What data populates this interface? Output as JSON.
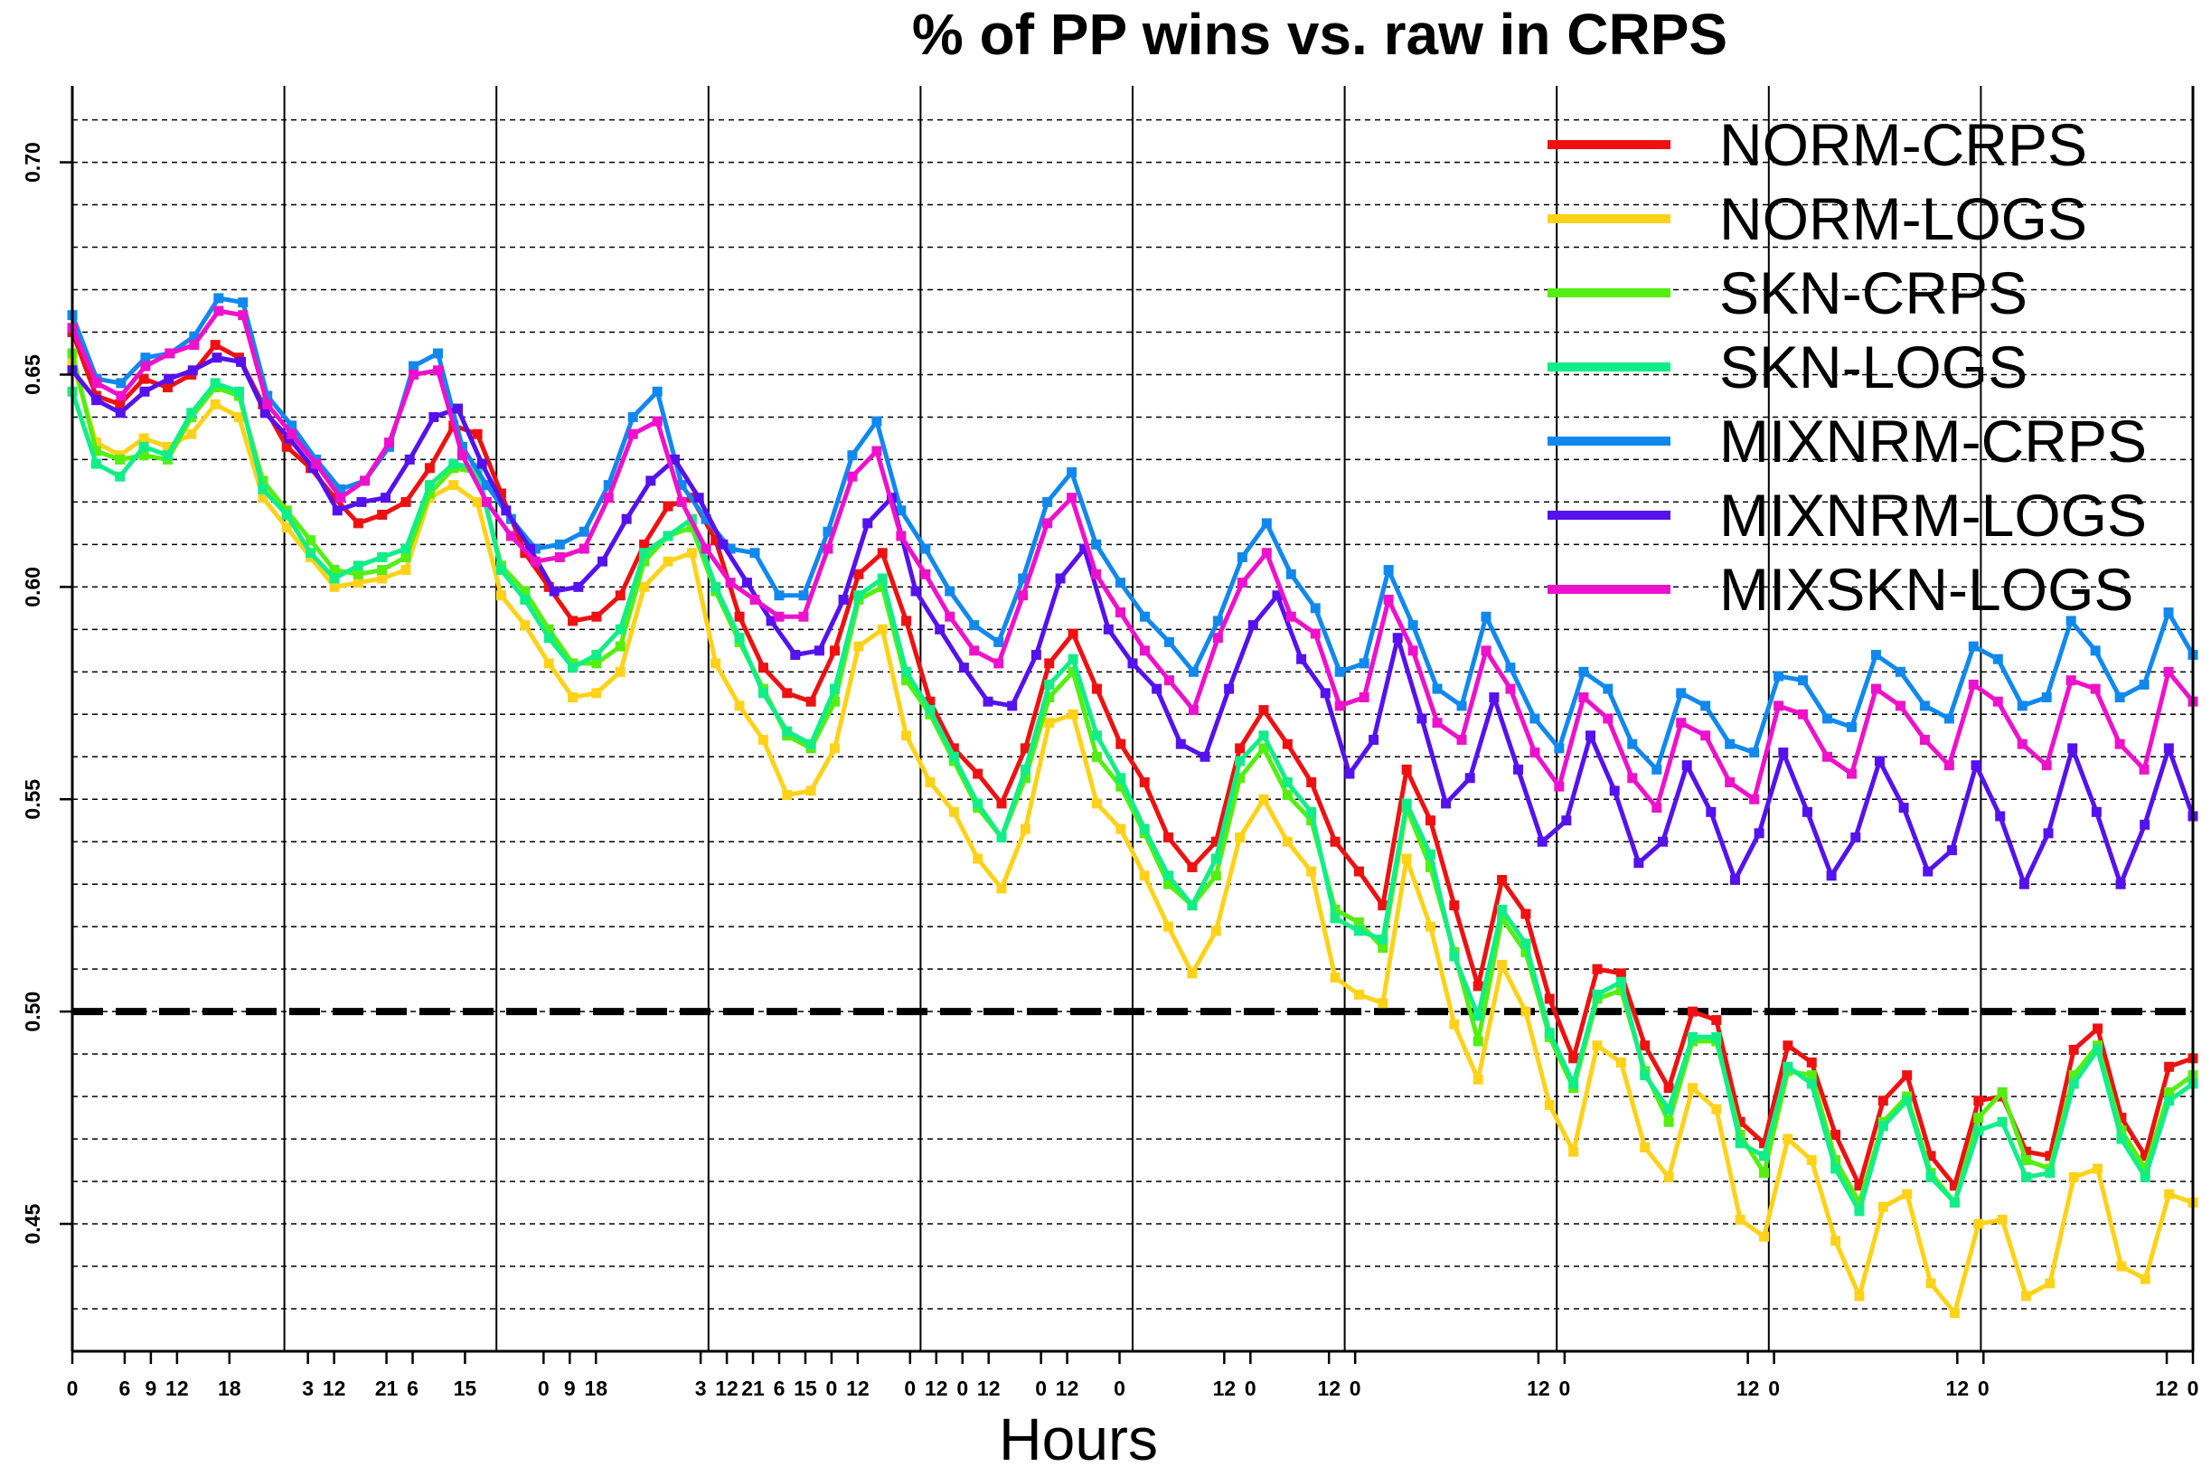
{
  "chart_data": {
    "type": "line",
    "title": "% of PP wins vs. raw in CRPS",
    "xlabel": "Hours",
    "ylabel": "",
    "xlim": [
      0,
      240
    ],
    "ylim": [
      0.42,
      0.718
    ],
    "reference_line": 0.5,
    "legend_position": "top-right",
    "x_tick_positions": [
      0,
      6,
      9,
      12,
      18,
      27,
      30,
      36,
      39,
      45,
      54,
      57,
      60,
      72,
      75,
      78,
      81,
      84,
      87,
      90,
      96,
      99,
      102,
      105,
      111,
      114,
      120,
      132,
      135,
      144,
      147,
      168,
      171,
      192,
      195,
      216,
      219,
      240,
      243
    ],
    "x_tick_labels": [
      "0",
      "6",
      "9",
      "12",
      "18",
      "3",
      "12",
      "21",
      "6",
      "15",
      "0",
      "9",
      "18",
      "3",
      "12",
      "21",
      "6",
      "15",
      "0",
      "12",
      "0",
      "12",
      "0",
      "12",
      "0",
      "12",
      "0",
      "12",
      "0",
      "12",
      "0",
      "12",
      "0",
      "12",
      "0",
      "12",
      "0",
      "12",
      "0"
    ],
    "y_tick_labels": [
      "0.45",
      "0.50",
      "0.55",
      "0.60",
      "0.65",
      "0.70"
    ],
    "y_tick_values": [
      0.45,
      0.5,
      0.55,
      0.6,
      0.65,
      0.7
    ],
    "series": [
      {
        "name": "NORM-CRPS",
        "color": "#ee1111",
        "values": [
          0.66,
          0.645,
          0.643,
          0.649,
          0.647,
          0.65,
          0.657,
          0.654,
          0.643,
          0.633,
          0.628,
          0.621,
          0.615,
          0.617,
          0.62,
          0.628,
          0.638,
          0.636,
          0.622,
          0.608,
          0.6,
          0.592,
          0.593,
          0.598,
          0.61,
          0.619,
          0.621,
          0.611,
          0.593,
          0.581,
          0.575,
          0.573,
          0.585,
          0.603,
          0.608,
          0.592,
          0.573,
          0.562,
          0.556,
          0.549,
          0.562,
          0.582,
          0.589,
          0.576,
          0.563,
          0.554,
          0.541,
          0.534,
          0.54,
          0.562,
          0.571,
          0.563,
          0.554,
          0.54,
          0.533,
          0.525,
          0.557,
          0.545,
          0.525,
          0.506,
          0.531,
          0.523,
          0.503,
          0.489,
          0.51,
          0.509,
          0.492,
          0.482,
          0.5,
          0.498,
          0.474,
          0.469,
          0.492,
          0.488,
          0.471,
          0.459,
          0.479,
          0.485,
          0.466,
          0.459,
          0.479,
          0.48,
          0.467,
          0.466,
          0.491,
          0.496,
          0.475,
          0.466,
          0.487,
          0.489
        ]
      },
      {
        "name": "NORM-LOGS",
        "color": "#ffd21a",
        "values": [
          0.653,
          0.634,
          0.631,
          0.635,
          0.633,
          0.636,
          0.643,
          0.64,
          0.621,
          0.614,
          0.607,
          0.6,
          0.601,
          0.602,
          0.604,
          0.621,
          0.624,
          0.62,
          0.598,
          0.591,
          0.582,
          0.574,
          0.575,
          0.58,
          0.6,
          0.606,
          0.608,
          0.582,
          0.572,
          0.564,
          0.551,
          0.552,
          0.562,
          0.586,
          0.59,
          0.565,
          0.554,
          0.547,
          0.536,
          0.529,
          0.543,
          0.568,
          0.57,
          0.549,
          0.543,
          0.532,
          0.52,
          0.509,
          0.519,
          0.541,
          0.55,
          0.54,
          0.533,
          0.508,
          0.504,
          0.502,
          0.536,
          0.52,
          0.497,
          0.484,
          0.511,
          0.5,
          0.478,
          0.467,
          0.492,
          0.488,
          0.468,
          0.461,
          0.482,
          0.477,
          0.451,
          0.447,
          0.47,
          0.465,
          0.446,
          0.433,
          0.454,
          0.457,
          0.436,
          0.429,
          0.45,
          0.451,
          0.433,
          0.436,
          0.461,
          0.463,
          0.44,
          0.437,
          0.457,
          0.455
        ]
      },
      {
        "name": "SKN-CRPS",
        "color": "#55ee11",
        "values": [
          0.655,
          0.632,
          0.63,
          0.631,
          0.63,
          0.64,
          0.647,
          0.645,
          0.625,
          0.618,
          0.611,
          0.604,
          0.603,
          0.604,
          0.607,
          0.622,
          0.628,
          0.627,
          0.605,
          0.599,
          0.59,
          0.582,
          0.582,
          0.586,
          0.606,
          0.612,
          0.614,
          0.599,
          0.587,
          0.576,
          0.565,
          0.562,
          0.573,
          0.597,
          0.6,
          0.578,
          0.57,
          0.559,
          0.548,
          0.541,
          0.555,
          0.574,
          0.58,
          0.56,
          0.553,
          0.542,
          0.53,
          0.525,
          0.532,
          0.555,
          0.562,
          0.551,
          0.545,
          0.524,
          0.521,
          0.515,
          0.548,
          0.534,
          0.514,
          0.493,
          0.522,
          0.514,
          0.494,
          0.482,
          0.503,
          0.505,
          0.486,
          0.474,
          0.493,
          0.493,
          0.471,
          0.462,
          0.486,
          0.485,
          0.465,
          0.455,
          0.474,
          0.48,
          0.462,
          0.455,
          0.475,
          0.481,
          0.465,
          0.463,
          0.485,
          0.492,
          0.472,
          0.463,
          0.481,
          0.485
        ]
      },
      {
        "name": "SKN-LOGS",
        "color": "#11ee88",
        "values": [
          0.646,
          0.629,
          0.626,
          0.633,
          0.631,
          0.641,
          0.648,
          0.646,
          0.623,
          0.617,
          0.608,
          0.602,
          0.605,
          0.607,
          0.609,
          0.624,
          0.629,
          0.628,
          0.604,
          0.597,
          0.588,
          0.581,
          0.584,
          0.59,
          0.608,
          0.612,
          0.616,
          0.6,
          0.588,
          0.575,
          0.566,
          0.563,
          0.576,
          0.598,
          0.602,
          0.58,
          0.571,
          0.56,
          0.549,
          0.541,
          0.557,
          0.577,
          0.583,
          0.565,
          0.555,
          0.543,
          0.532,
          0.525,
          0.536,
          0.559,
          0.565,
          0.554,
          0.547,
          0.522,
          0.519,
          0.517,
          0.549,
          0.537,
          0.513,
          0.499,
          0.524,
          0.516,
          0.495,
          0.483,
          0.504,
          0.507,
          0.485,
          0.477,
          0.494,
          0.494,
          0.469,
          0.466,
          0.487,
          0.483,
          0.463,
          0.453,
          0.473,
          0.479,
          0.461,
          0.455,
          0.472,
          0.474,
          0.461,
          0.462,
          0.483,
          0.491,
          0.47,
          0.461,
          0.479,
          0.483
        ]
      },
      {
        "name": "MIXNRM-CRPS",
        "color": "#1188ee",
        "values": [
          0.664,
          0.649,
          0.648,
          0.654,
          0.655,
          0.659,
          0.668,
          0.667,
          0.645,
          0.638,
          0.63,
          0.623,
          0.625,
          0.633,
          0.652,
          0.655,
          0.633,
          0.624,
          0.616,
          0.609,
          0.61,
          0.613,
          0.624,
          0.64,
          0.646,
          0.624,
          0.616,
          0.609,
          0.608,
          0.598,
          0.598,
          0.613,
          0.631,
          0.639,
          0.618,
          0.609,
          0.599,
          0.591,
          0.587,
          0.602,
          0.62,
          0.627,
          0.61,
          0.601,
          0.593,
          0.587,
          0.58,
          0.592,
          0.607,
          0.615,
          0.603,
          0.595,
          0.58,
          0.582,
          0.604,
          0.591,
          0.576,
          0.572,
          0.593,
          0.581,
          0.569,
          0.562,
          0.58,
          0.576,
          0.563,
          0.557,
          0.575,
          0.572,
          0.563,
          0.561,
          0.579,
          0.578,
          0.569,
          0.567,
          0.584,
          0.58,
          0.572,
          0.569,
          0.586,
          0.583,
          0.572,
          0.574,
          0.592,
          0.585,
          0.574,
          0.577,
          0.594,
          0.584
        ]
      },
      {
        "name": "MIXNRM-LOGS",
        "color": "#5511ee",
        "values": [
          0.651,
          0.644,
          0.641,
          0.646,
          0.649,
          0.651,
          0.654,
          0.653,
          0.641,
          0.635,
          0.628,
          0.618,
          0.62,
          0.621,
          0.63,
          0.64,
          0.642,
          0.629,
          0.618,
          0.609,
          0.599,
          0.6,
          0.606,
          0.616,
          0.625,
          0.63,
          0.621,
          0.61,
          0.601,
          0.592,
          0.584,
          0.585,
          0.597,
          0.615,
          0.621,
          0.599,
          0.59,
          0.581,
          0.573,
          0.572,
          0.584,
          0.602,
          0.609,
          0.59,
          0.582,
          0.576,
          0.563,
          0.56,
          0.576,
          0.591,
          0.598,
          0.583,
          0.575,
          0.556,
          0.564,
          0.588,
          0.569,
          0.549,
          0.555,
          0.574,
          0.557,
          0.54,
          0.545,
          0.565,
          0.552,
          0.535,
          0.54,
          0.558,
          0.547,
          0.531,
          0.542,
          0.561,
          0.547,
          0.532,
          0.541,
          0.559,
          0.548,
          0.533,
          0.538,
          0.558,
          0.546,
          0.53,
          0.542,
          0.562,
          0.547,
          0.53,
          0.544,
          0.562,
          0.546
        ]
      },
      {
        "name": "MIXSKN-LOGS",
        "color": "#ee11cc",
        "values": [
          0.661,
          0.648,
          0.645,
          0.652,
          0.655,
          0.657,
          0.665,
          0.664,
          0.643,
          0.636,
          0.629,
          0.621,
          0.625,
          0.634,
          0.65,
          0.651,
          0.631,
          0.62,
          0.612,
          0.606,
          0.607,
          0.609,
          0.621,
          0.636,
          0.639,
          0.62,
          0.609,
          0.601,
          0.597,
          0.593,
          0.593,
          0.609,
          0.626,
          0.632,
          0.612,
          0.603,
          0.593,
          0.585,
          0.582,
          0.598,
          0.615,
          0.621,
          0.603,
          0.594,
          0.585,
          0.578,
          0.571,
          0.588,
          0.601,
          0.608,
          0.593,
          0.589,
          0.572,
          0.574,
          0.597,
          0.585,
          0.568,
          0.564,
          0.585,
          0.576,
          0.561,
          0.553,
          0.574,
          0.569,
          0.555,
          0.548,
          0.568,
          0.565,
          0.554,
          0.55,
          0.572,
          0.57,
          0.56,
          0.556,
          0.576,
          0.572,
          0.564,
          0.558,
          0.577,
          0.573,
          0.563,
          0.558,
          0.578,
          0.576,
          0.563,
          0.557,
          0.58,
          0.573
        ]
      }
    ]
  }
}
